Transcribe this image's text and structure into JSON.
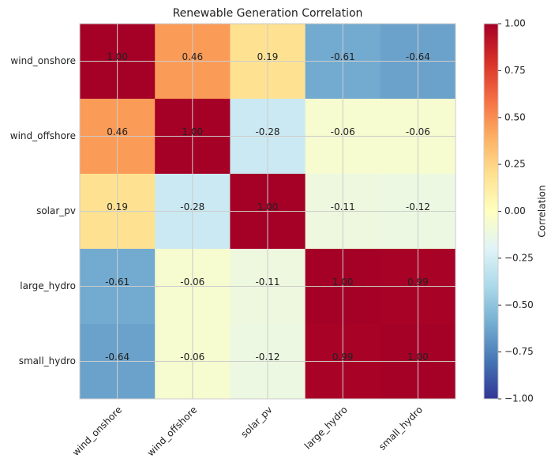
{
  "chart_data": {
    "type": "heatmap",
    "title": "Renewable Generation Correlation",
    "categories": [
      "wind_onshore",
      "wind_offshore",
      "solar_pv",
      "large_hydro",
      "small_hydro"
    ],
    "values": [
      [
        1,
        0.46,
        0.19,
        -0.61,
        -0.64
      ],
      [
        0.46,
        1,
        -0.28,
        -0.06,
        -0.06
      ],
      [
        0.19,
        -0.28,
        1,
        -0.11,
        -0.12
      ],
      [
        -0.61,
        -0.06,
        -0.11,
        1,
        0.99
      ],
      [
        -0.64,
        -0.06,
        -0.12,
        0.99,
        1
      ]
    ],
    "value_labels": [
      [
        "1.00",
        "0.46",
        "0.19",
        "-0.61",
        "-0.64"
      ],
      [
        "0.46",
        "1.00",
        "-0.28",
        "-0.06",
        "-0.06"
      ],
      [
        "0.19",
        "-0.28",
        "1.00",
        "-0.11",
        "-0.12"
      ],
      [
        "-0.61",
        "-0.06",
        "-0.11",
        "1.00",
        "0.99"
      ],
      [
        "-0.64",
        "-0.06",
        "-0.12",
        "0.99",
        "1.00"
      ]
    ],
    "colorbar_label": "Correlation",
    "clim": [
      -1,
      1
    ],
    "cticks": [
      {
        "value": 1,
        "label": "1.00"
      },
      {
        "value": 0.75,
        "label": "0.75"
      },
      {
        "value": 0.5,
        "label": "0.50"
      },
      {
        "value": 0.25,
        "label": "0.25"
      },
      {
        "value": 0,
        "label": "0.00"
      },
      {
        "value": -0.25,
        "label": "−0.25"
      },
      {
        "value": -0.5,
        "label": "−0.50"
      },
      {
        "value": -0.75,
        "label": "−0.75"
      },
      {
        "value": -1,
        "label": "−1.00"
      }
    ],
    "colormap": [
      "#313695",
      "#4575b4",
      "#74add1",
      "#abd9e9",
      "#e0f3f8",
      "#ffffbf",
      "#fee090",
      "#fdae61",
      "#f46d43",
      "#d73027",
      "#a50026"
    ],
    "grid": true
  }
}
